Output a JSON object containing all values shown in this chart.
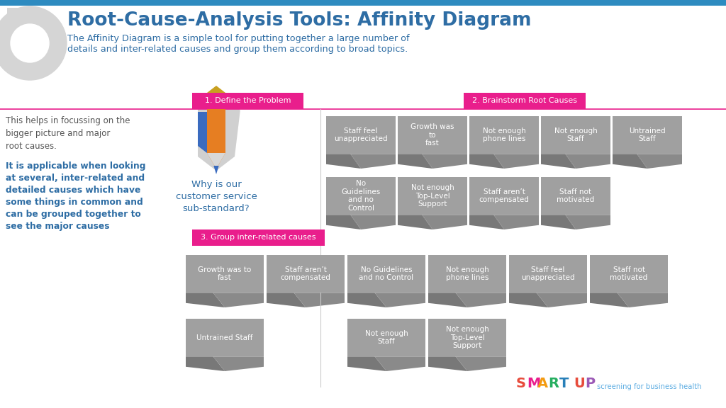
{
  "title": "Root-Cause-Analysis Tools: Affinity Diagram",
  "subtitle": "The Affinity Diagram is a simple tool for putting together a large number of\ndetails and inter-related causes and group them according to broad topics.",
  "left_text_normal": "This helps in focussing on the\nbigger picture and major\nroot causes.",
  "left_text_bold": "It is applicable when looking\nat several, inter-related and\ndetailed causes which have\nsome things in common and\ncan be grouped together to\nsee the major causes",
  "section1_label": "1. Define the Problem",
  "section2_label": "2. Brainstorm Root Causes",
  "section3_label": "3. Group inter-related causes",
  "question_text": "Why is our\ncustomer service\nsub-standard?",
  "section2_row1": [
    "Staff feel\nunappreciated",
    "Growth was\nto\nfast",
    "Not enough\nphone lines",
    "Not enough\nStaff",
    "Untrained\nStaff"
  ],
  "section2_row2": [
    "No\nGuidelines\nand no\nControl",
    "Not enough\nTop-Level\nSupport",
    "Staff aren’t\ncompensated",
    "Staff not\nmotivated"
  ],
  "section3_row1": [
    "Growth was to\nfast",
    "Staff aren’t\ncompensated",
    "No Guidelines\nand no Control",
    "Not enough\nphone lines",
    "Staff feel\nunappreciated",
    "Staff not\nmotivated"
  ],
  "section3_row2_items": [
    {
      "text": "Untrained Staff",
      "col_idx": 0
    },
    {
      "text": "Not enough\nStaff",
      "col_idx": 2
    },
    {
      "text": "Not enough\nTop-Level\nSupport",
      "col_idx": 3
    }
  ],
  "bg_color": "#ffffff",
  "title_color": "#2e6da4",
  "subtitle_color": "#2e6da4",
  "section1_bg": "#e91e8c",
  "section2_bg": "#e91e8c",
  "section3_bg": "#e91e8c",
  "card_color_light": "#a0a0a0",
  "card_color_dark": "#787878",
  "card_text_color": "#ffffff",
  "left_bold_color": "#2e6da4",
  "divider_color": "#e91e8c",
  "vert_divider_color": "#cccccc",
  "smart_colors": [
    "#e74c3c",
    "#e91e8c",
    "#f39c12",
    "#27ae60",
    "#2980b9"
  ],
  "smart_up_u_color": "#e74c3c",
  "smart_up_p_color": "#9b59b6",
  "smart_tagline_color": "#5dade2",
  "top_bar_color": "#2e8bc0",
  "top_circle_color": "#cccccc"
}
